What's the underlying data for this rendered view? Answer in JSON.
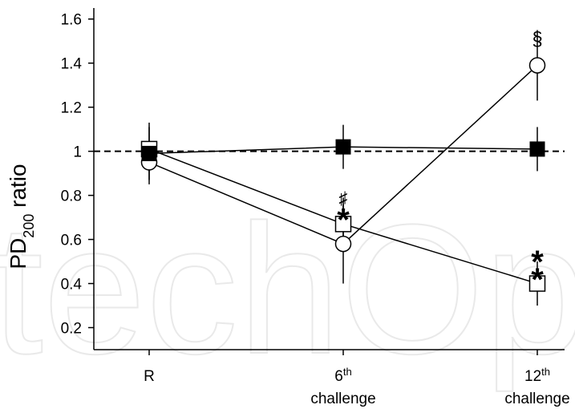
{
  "watermark": "techOpen",
  "chart_data": {
    "type": "line",
    "ylabel": {
      "main": "PD",
      "sub": "200",
      "tail": " ratio"
    },
    "ylim": [
      0.1,
      1.65
    ],
    "yticks": [
      0.2,
      0.4,
      0.6,
      0.8,
      1,
      1.2,
      1.4,
      1.6
    ],
    "ytick_labels": [
      "0.2",
      "0.4",
      "0.6",
      "0.8",
      "1",
      "1.2",
      "1.4",
      "1.6"
    ],
    "categories": [
      {
        "main": "R",
        "sup": "",
        "line2": ""
      },
      {
        "main": "6",
        "sup": "th",
        "line2": "challenge"
      },
      {
        "main": "12",
        "sup": "th",
        "line2": "challenge"
      }
    ],
    "reference_line": 1,
    "series": [
      {
        "marker": "filled-square",
        "values": [
          0.99,
          1.02,
          1.01
        ],
        "err": [
          0.14,
          0.1,
          0.1
        ]
      },
      {
        "marker": "open-circle",
        "values": [
          0.95,
          0.58,
          1.39
        ],
        "err": [
          0.08,
          0.18,
          0.16
        ]
      },
      {
        "marker": "open-square",
        "values": [
          1.01,
          0.67,
          0.4
        ],
        "err": [
          0.1,
          0.12,
          0.1
        ]
      }
    ],
    "annotations": [
      {
        "text": "*",
        "category": 1,
        "value": 0.72,
        "size": "large"
      },
      {
        "text": "♯",
        "category": 1,
        "value": 0.79,
        "size": "small"
      },
      {
        "text": "*",
        "category": 2,
        "value": 0.45,
        "size": "large"
      },
      {
        "text": "*",
        "category": 2,
        "value": 0.53,
        "size": "large"
      },
      {
        "text": "§",
        "category": 2,
        "value": 1.51,
        "size": "medium"
      }
    ]
  }
}
